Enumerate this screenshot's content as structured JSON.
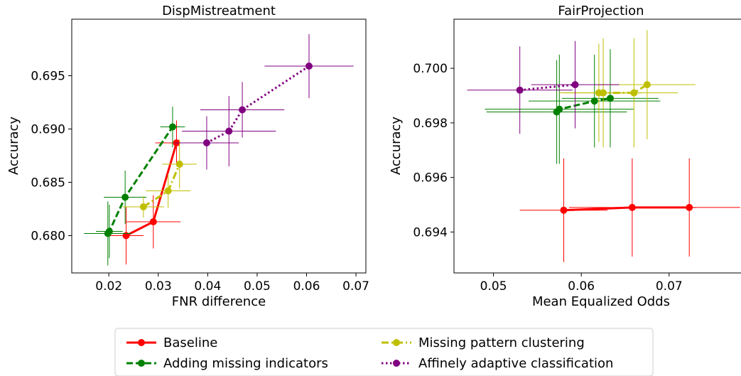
{
  "chart_data": [
    {
      "type": "scatter",
      "title": "DispMistreatment",
      "xlabel": "FNR difference",
      "ylabel": "Accuracy",
      "xlim": [
        0.0125,
        0.072
      ],
      "ylim": [
        0.6765,
        0.7003
      ],
      "xticks": [
        0.02,
        0.03,
        0.04,
        0.05,
        0.06,
        0.07
      ],
      "xtick_labels": [
        "0.02",
        "0.03",
        "0.04",
        "0.05",
        "0.06",
        "0.07"
      ],
      "yticks": [
        0.68,
        0.685,
        0.69,
        0.695
      ],
      "ytick_labels": [
        "0.680",
        "0.685",
        "0.690",
        "0.695"
      ],
      "grid": false,
      "series": [
        {
          "name": "Baseline",
          "color": "#ff0000",
          "linestyle": "solid",
          "points": [
            {
              "x": 0.0235,
              "y": 0.68,
              "xerr": [
                0.0035,
                0.0035
              ],
              "yerr": [
                0.0027,
                0.0027
              ]
            },
            {
              "x": 0.029,
              "y": 0.6813,
              "xerr": [
                0.0055,
                0.0055
              ],
              "yerr": [
                0.0025,
                0.0025
              ]
            },
            {
              "x": 0.0337,
              "y": 0.6887,
              "xerr": [
                0.0043,
                0.0043
              ],
              "yerr": [
                0.0021,
                0.0021
              ]
            }
          ]
        },
        {
          "name": "Adding missing indicators",
          "color": "#008000",
          "linestyle": "dashed",
          "points": [
            {
              "x": 0.0198,
              "y": 0.6802,
              "xerr": [
                0.0048,
                0.0048
              ],
              "yerr": [
                0.003,
                0.003
              ]
            },
            {
              "x": 0.0201,
              "y": 0.6804,
              "xerr": [
                0.0027,
                0.0027
              ],
              "yerr": [
                0.0025,
                0.0025
              ]
            },
            {
              "x": 0.0233,
              "y": 0.6836,
              "xerr": [
                0.0043,
                0.0043
              ],
              "yerr": [
                0.0025,
                0.0025
              ]
            },
            {
              "x": 0.0329,
              "y": 0.6902,
              "xerr": [
                0.0025,
                0.0025
              ],
              "yerr": [
                0.0019,
                0.0019
              ]
            }
          ]
        },
        {
          "name": "Missing pattern clustering",
          "color": "#bfbf00",
          "linestyle": "dashdot",
          "points": [
            {
              "x": 0.027,
              "y": 0.6827,
              "xerr": [
                0.0042,
                0.0042
              ],
              "yerr": [
                0.001,
                0.001
              ]
            },
            {
              "x": 0.032,
              "y": 0.6842,
              "xerr": [
                0.0045,
                0.0045
              ],
              "yerr": [
                0.0016,
                0.0016
              ]
            },
            {
              "x": 0.0343,
              "y": 0.6867,
              "xerr": [
                0.0035,
                0.0035
              ],
              "yerr": [
                0.0023,
                0.0023
              ]
            }
          ]
        },
        {
          "name": "Affinely adaptive classification",
          "color": "#800080",
          "linestyle": "dotted",
          "points": [
            {
              "x": 0.0398,
              "y": 0.6887,
              "xerr": [
                0.0065,
                0.0065
              ],
              "yerr": [
                0.0025,
                0.0025
              ]
            },
            {
              "x": 0.0443,
              "y": 0.6898,
              "xerr": [
                0.0095,
                0.0095
              ],
              "yerr": [
                0.0033,
                0.0033
              ]
            },
            {
              "x": 0.047,
              "y": 0.6918,
              "xerr": [
                0.0085,
                0.0085
              ],
              "yerr": [
                0.0026,
                0.0026
              ]
            },
            {
              "x": 0.0605,
              "y": 0.6959,
              "xerr": [
                0.009,
                0.009
              ],
              "yerr": [
                0.003,
                0.003
              ]
            }
          ]
        }
      ]
    },
    {
      "type": "scatter",
      "title": "FairProjection",
      "xlabel": "Mean Equalized Odds",
      "ylabel": "Accuracy",
      "xlim": [
        0.0455,
        0.079
      ],
      "ylim": [
        0.6925,
        0.7018
      ],
      "xticks": [
        0.05,
        0.06,
        0.07
      ],
      "xtick_labels": [
        "0.05",
        "0.06",
        "0.07"
      ],
      "yticks": [
        0.694,
        0.696,
        0.698,
        0.7
      ],
      "ytick_labels": [
        "0.694",
        "0.696",
        "0.698",
        "0.700"
      ],
      "grid": false,
      "series": [
        {
          "name": "Baseline",
          "color": "#ff0000",
          "linestyle": "solid",
          "points": [
            {
              "x": 0.058,
              "y": 0.6948,
              "xerr": [
                0.005,
                0.005
              ],
              "yerr": [
                0.0019,
                0.0019
              ]
            },
            {
              "x": 0.0658,
              "y": 0.6949,
              "xerr": [
                0.0072,
                0.0072
              ],
              "yerr": [
                0.0018,
                0.0018
              ]
            },
            {
              "x": 0.0723,
              "y": 0.6949,
              "xerr": [
                0.0058,
                0.0058
              ],
              "yerr": [
                0.0018,
                0.0018
              ]
            }
          ]
        },
        {
          "name": "Adding missing indicators",
          "color": "#008000",
          "linestyle": "dashed",
          "points": [
            {
              "x": 0.0572,
              "y": 0.6984,
              "xerr": [
                0.008,
                0.008
              ],
              "yerr": [
                0.0019,
                0.0019
              ]
            },
            {
              "x": 0.0575,
              "y": 0.6985,
              "xerr": [
                0.0085,
                0.0085
              ],
              "yerr": [
                0.002,
                0.002
              ]
            },
            {
              "x": 0.0615,
              "y": 0.6988,
              "xerr": [
                0.0075,
                0.0075
              ],
              "yerr": [
                0.0017,
                0.0017
              ]
            },
            {
              "x": 0.0633,
              "y": 0.6989,
              "xerr": [
                0.0055,
                0.0055
              ],
              "yerr": [
                0.0018,
                0.0018
              ]
            }
          ]
        },
        {
          "name": "Missing pattern clustering",
          "color": "#bfbf00",
          "linestyle": "dashdot",
          "points": [
            {
              "x": 0.062,
              "y": 0.6991,
              "xerr": [
                0.0045,
                0.0045
              ],
              "yerr": [
                0.0018,
                0.0018
              ]
            },
            {
              "x": 0.0625,
              "y": 0.6991,
              "xerr": [
                0.0045,
                0.0045
              ],
              "yerr": [
                0.002,
                0.002
              ]
            },
            {
              "x": 0.066,
              "y": 0.6991,
              "xerr": [
                0.005,
                0.005
              ],
              "yerr": [
                0.002,
                0.002
              ]
            },
            {
              "x": 0.0675,
              "y": 0.6994,
              "xerr": [
                0.0055,
                0.0055
              ],
              "yerr": [
                0.002,
                0.002
              ]
            }
          ]
        },
        {
          "name": "Affinely adaptive classification",
          "color": "#800080",
          "linestyle": "dotted",
          "points": [
            {
              "x": 0.053,
              "y": 0.6992,
              "xerr": [
                0.006,
                0.006
              ],
              "yerr": [
                0.0016,
                0.0016
              ]
            },
            {
              "x": 0.0593,
              "y": 0.6994,
              "xerr": [
                0.005,
                0.005
              ],
              "yerr": [
                0.0016,
                0.0016
              ]
            }
          ]
        }
      ]
    }
  ],
  "legend": {
    "placement": "bottom-center",
    "entries": [
      {
        "label": "Baseline",
        "color": "#ff0000",
        "linestyle": "solid"
      },
      {
        "label": "Missing pattern clustering",
        "color": "#bfbf00",
        "linestyle": "dashdot"
      },
      {
        "label": "Adding missing indicators",
        "color": "#008000",
        "linestyle": "dashed"
      },
      {
        "label": "Affinely adaptive classification",
        "color": "#800080",
        "linestyle": "dotted"
      }
    ]
  }
}
